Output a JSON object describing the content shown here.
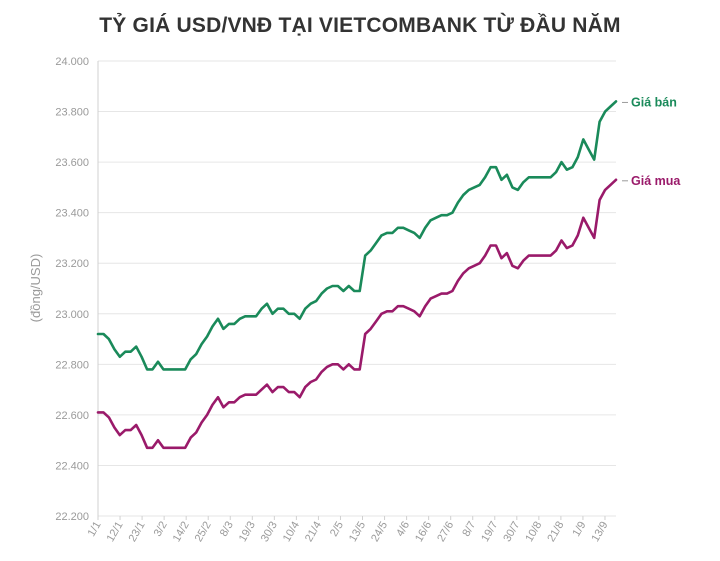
{
  "chart_data": {
    "type": "line",
    "title": "TỶ GIÁ USD/VNĐ TẠI VIETCOMBANK TỪ ĐẦU NĂM",
    "ylabel": "(đồng/USD)",
    "xlabel": "",
    "ylim": [
      22200,
      24000
    ],
    "y_ticks": [
      "22.200",
      "22.400",
      "22.600",
      "22.800",
      "23.000",
      "23.200",
      "23.400",
      "23.600",
      "23.800",
      "24.000"
    ],
    "x_ticks": [
      "1/1",
      "12/1",
      "23/1",
      "3/2",
      "14/2",
      "25/2",
      "8/3",
      "19/3",
      "30/3",
      "10/4",
      "21/4",
      "2/5",
      "13/5",
      "24/5",
      "4/6",
      "16/6",
      "27/6",
      "8/7",
      "19/7",
      "30/7",
      "10/8",
      "21/8",
      "1/9",
      "13/9"
    ],
    "grid": true,
    "series": [
      {
        "name": "Giá bán",
        "color": "#1a8a5a",
        "points": [
          [
            0,
            22920
          ],
          [
            1,
            22920
          ],
          [
            2,
            22900
          ],
          [
            3,
            22860
          ],
          [
            4,
            22830
          ],
          [
            5,
            22850
          ],
          [
            6,
            22850
          ],
          [
            7,
            22870
          ],
          [
            8,
            22830
          ],
          [
            9,
            22780
          ],
          [
            10,
            22780
          ],
          [
            11,
            22810
          ],
          [
            12,
            22780
          ],
          [
            13,
            22780
          ],
          [
            14,
            22780
          ],
          [
            15,
            22780
          ],
          [
            16,
            22780
          ],
          [
            17,
            22820
          ],
          [
            18,
            22840
          ],
          [
            19,
            22880
          ],
          [
            20,
            22910
          ],
          [
            21,
            22950
          ],
          [
            22,
            22980
          ],
          [
            23,
            22940
          ],
          [
            24,
            22960
          ],
          [
            25,
            22960
          ],
          [
            26,
            22980
          ],
          [
            27,
            22990
          ],
          [
            28,
            22990
          ],
          [
            29,
            22990
          ],
          [
            30,
            23020
          ],
          [
            31,
            23040
          ],
          [
            32,
            23000
          ],
          [
            33,
            23020
          ],
          [
            34,
            23020
          ],
          [
            35,
            23000
          ],
          [
            36,
            23000
          ],
          [
            37,
            22980
          ],
          [
            38,
            23020
          ],
          [
            39,
            23040
          ],
          [
            40,
            23050
          ],
          [
            41,
            23080
          ],
          [
            42,
            23100
          ],
          [
            43,
            23110
          ],
          [
            44,
            23110
          ],
          [
            45,
            23090
          ],
          [
            46,
            23110
          ],
          [
            47,
            23090
          ],
          [
            48,
            23090
          ],
          [
            49,
            23230
          ],
          [
            50,
            23250
          ],
          [
            51,
            23280
          ],
          [
            52,
            23310
          ],
          [
            53,
            23320
          ],
          [
            54,
            23320
          ],
          [
            55,
            23340
          ],
          [
            56,
            23340
          ],
          [
            57,
            23330
          ],
          [
            58,
            23320
          ],
          [
            59,
            23300
          ],
          [
            60,
            23340
          ],
          [
            61,
            23370
          ],
          [
            62,
            23380
          ],
          [
            63,
            23390
          ],
          [
            64,
            23390
          ],
          [
            65,
            23400
          ],
          [
            66,
            23440
          ],
          [
            67,
            23470
          ],
          [
            68,
            23490
          ],
          [
            69,
            23500
          ],
          [
            70,
            23510
          ],
          [
            71,
            23540
          ],
          [
            72,
            23580
          ],
          [
            73,
            23580
          ],
          [
            74,
            23530
          ],
          [
            75,
            23550
          ],
          [
            76,
            23500
          ],
          [
            77,
            23490
          ],
          [
            78,
            23520
          ],
          [
            79,
            23540
          ],
          [
            80,
            23540
          ],
          [
            81,
            23540
          ],
          [
            82,
            23540
          ],
          [
            83,
            23540
          ],
          [
            84,
            23560
          ],
          [
            85,
            23600
          ],
          [
            86,
            23570
          ],
          [
            87,
            23580
          ],
          [
            88,
            23620
          ],
          [
            89,
            23690
          ],
          [
            90,
            23650
          ],
          [
            91,
            23610
          ],
          [
            92,
            23760
          ],
          [
            93,
            23800
          ],
          [
            94,
            23820
          ],
          [
            95,
            23840
          ]
        ]
      },
      {
        "name": "Giá mua",
        "color": "#9a1a6a",
        "points": [
          [
            0,
            22610
          ],
          [
            1,
            22610
          ],
          [
            2,
            22590
          ],
          [
            3,
            22550
          ],
          [
            4,
            22520
          ],
          [
            5,
            22540
          ],
          [
            6,
            22540
          ],
          [
            7,
            22560
          ],
          [
            8,
            22520
          ],
          [
            9,
            22470
          ],
          [
            10,
            22470
          ],
          [
            11,
            22500
          ],
          [
            12,
            22470
          ],
          [
            13,
            22470
          ],
          [
            14,
            22470
          ],
          [
            15,
            22470
          ],
          [
            16,
            22470
          ],
          [
            17,
            22510
          ],
          [
            18,
            22530
          ],
          [
            19,
            22570
          ],
          [
            20,
            22600
          ],
          [
            21,
            22640
          ],
          [
            22,
            22670
          ],
          [
            23,
            22630
          ],
          [
            24,
            22650
          ],
          [
            25,
            22650
          ],
          [
            26,
            22670
          ],
          [
            27,
            22680
          ],
          [
            28,
            22680
          ],
          [
            29,
            22680
          ],
          [
            30,
            22700
          ],
          [
            31,
            22720
          ],
          [
            32,
            22690
          ],
          [
            33,
            22710
          ],
          [
            34,
            22710
          ],
          [
            35,
            22690
          ],
          [
            36,
            22690
          ],
          [
            37,
            22670
          ],
          [
            38,
            22710
          ],
          [
            39,
            22730
          ],
          [
            40,
            22740
          ],
          [
            41,
            22770
          ],
          [
            42,
            22790
          ],
          [
            43,
            22800
          ],
          [
            44,
            22800
          ],
          [
            45,
            22780
          ],
          [
            46,
            22800
          ],
          [
            47,
            22780
          ],
          [
            48,
            22780
          ],
          [
            49,
            22920
          ],
          [
            50,
            22940
          ],
          [
            51,
            22970
          ],
          [
            52,
            23000
          ],
          [
            53,
            23010
          ],
          [
            54,
            23010
          ],
          [
            55,
            23030
          ],
          [
            56,
            23030
          ],
          [
            57,
            23020
          ],
          [
            58,
            23010
          ],
          [
            59,
            22990
          ],
          [
            60,
            23030
          ],
          [
            61,
            23060
          ],
          [
            62,
            23070
          ],
          [
            63,
            23080
          ],
          [
            64,
            23080
          ],
          [
            65,
            23090
          ],
          [
            66,
            23130
          ],
          [
            67,
            23160
          ],
          [
            68,
            23180
          ],
          [
            69,
            23190
          ],
          [
            70,
            23200
          ],
          [
            71,
            23230
          ],
          [
            72,
            23270
          ],
          [
            73,
            23270
          ],
          [
            74,
            23220
          ],
          [
            75,
            23240
          ],
          [
            76,
            23190
          ],
          [
            77,
            23180
          ],
          [
            78,
            23210
          ],
          [
            79,
            23230
          ],
          [
            80,
            23230
          ],
          [
            81,
            23230
          ],
          [
            82,
            23230
          ],
          [
            83,
            23230
          ],
          [
            84,
            23250
          ],
          [
            85,
            23290
          ],
          [
            86,
            23260
          ],
          [
            87,
            23270
          ],
          [
            88,
            23310
          ],
          [
            89,
            23380
          ],
          [
            90,
            23340
          ],
          [
            91,
            23300
          ],
          [
            92,
            23450
          ],
          [
            93,
            23490
          ],
          [
            94,
            23510
          ],
          [
            95,
            23530
          ]
        ]
      }
    ]
  }
}
